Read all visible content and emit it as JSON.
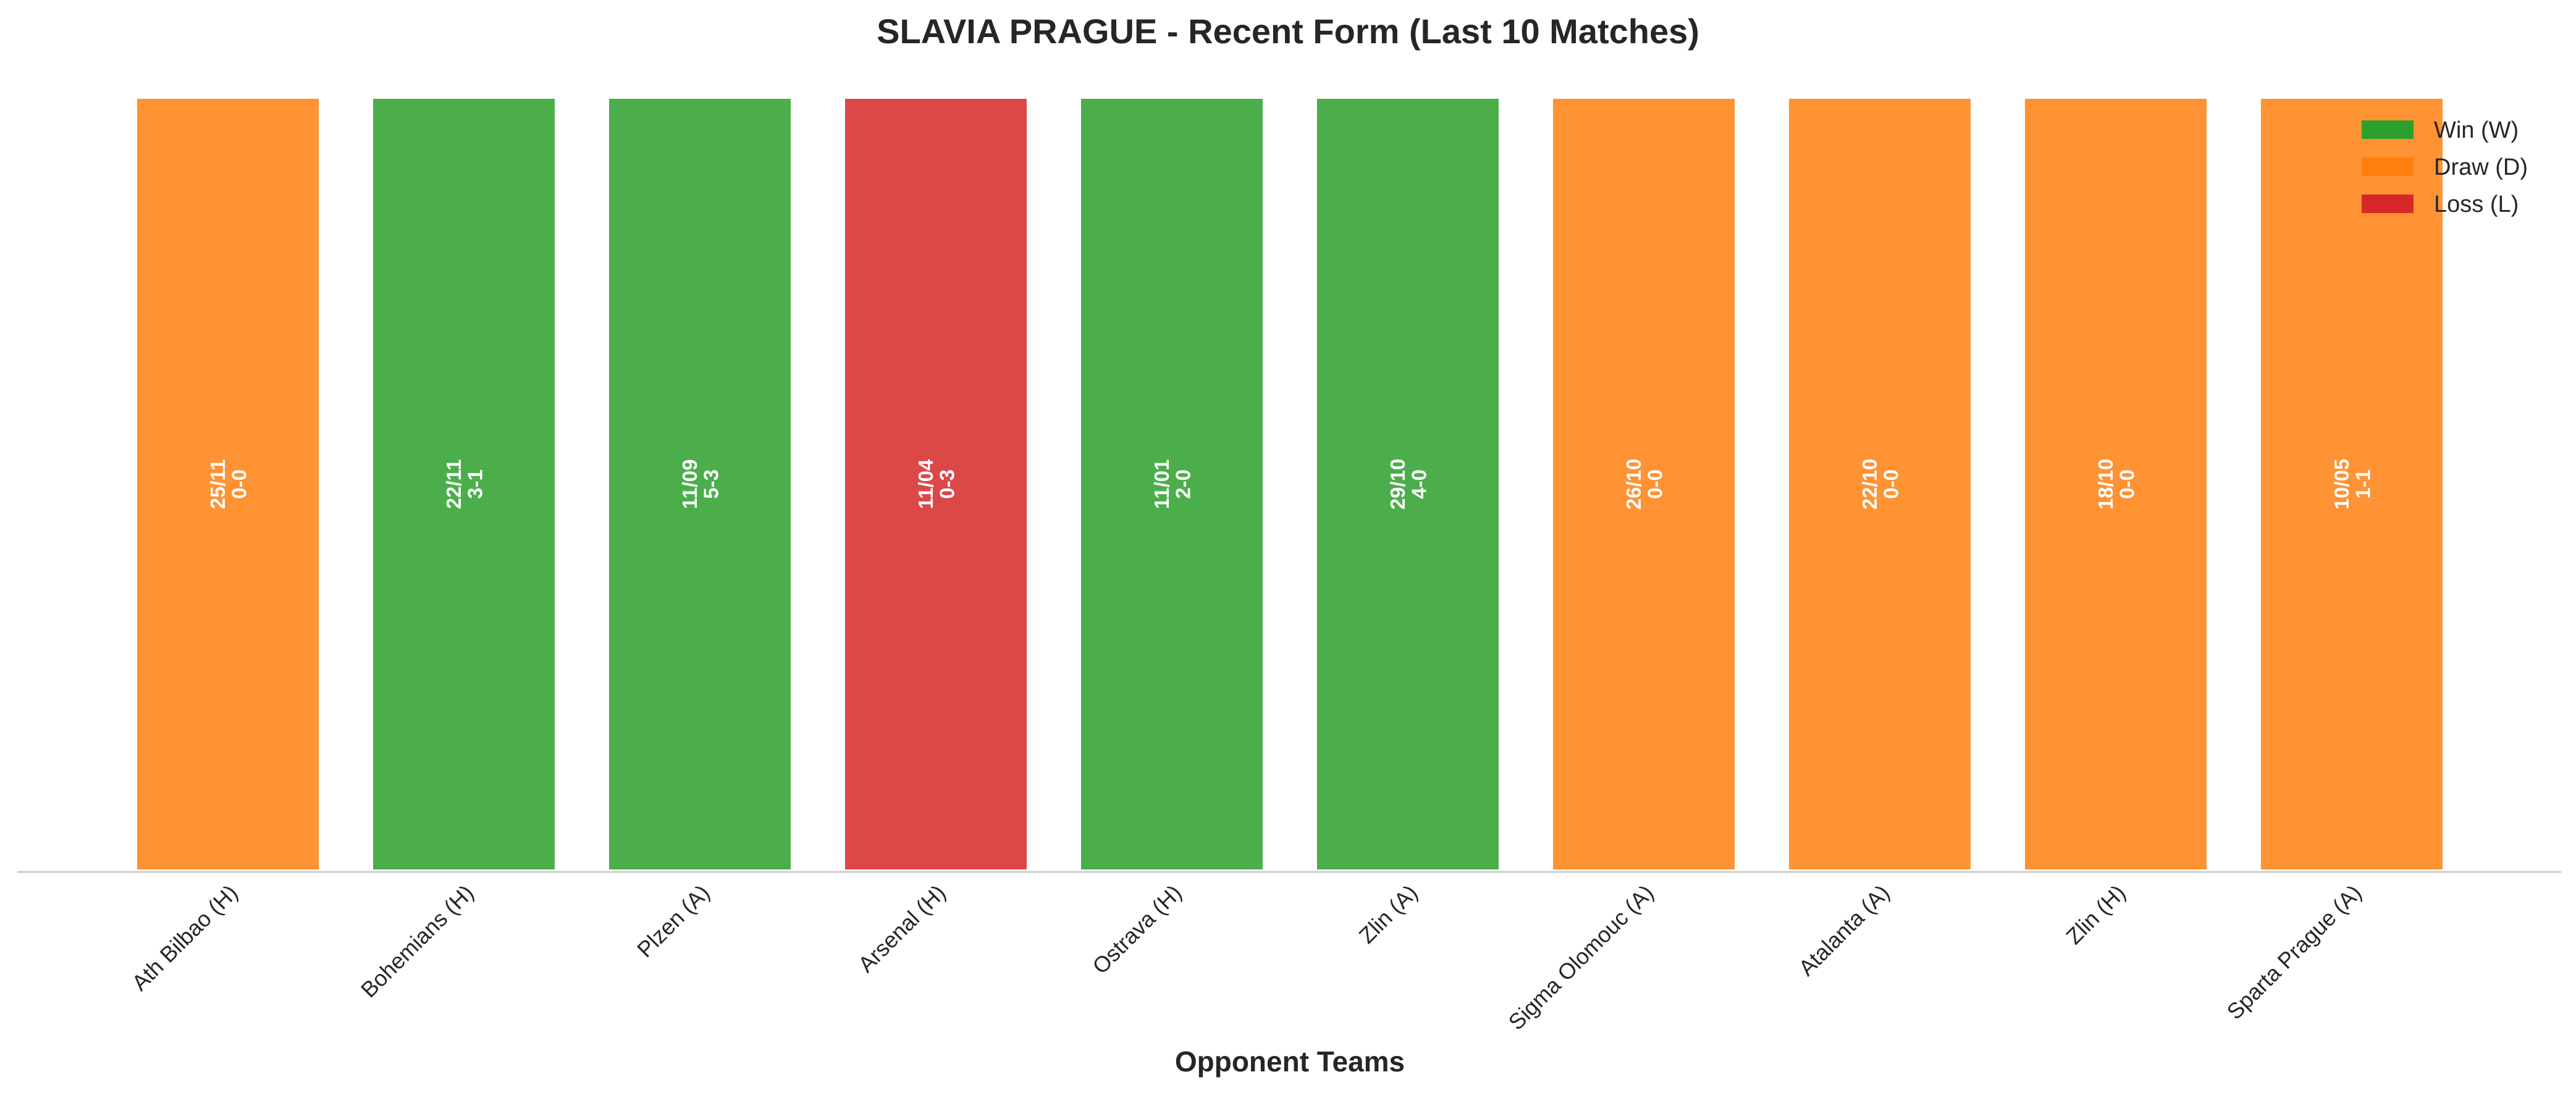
{
  "chart_data": {
    "type": "bar",
    "title": "SLAVIA PRAGUE - Recent Form (Last 10 Matches)",
    "xlabel": "Opponent Teams",
    "ylabel": "",
    "grid": false,
    "legend_position": "top-right",
    "categories": [
      "Ath Bilbao (H)",
      "Bohemians (H)",
      "Plzen (A)",
      "Arsenal (H)",
      "Ostrava (H)",
      "Zlin (A)",
      "Sigma Olomouc (A)",
      "Atalanta (A)",
      "Zlin (H)",
      "Sparta Prague (A)"
    ],
    "values": [
      1,
      1,
      1,
      1,
      1,
      1,
      1,
      1,
      1,
      1
    ],
    "ylim": [
      0,
      1.02
    ],
    "results": [
      "D",
      "W",
      "W",
      "L",
      "W",
      "W",
      "D",
      "D",
      "D",
      "D"
    ],
    "dates": [
      "25/11",
      "22/11",
      "11/09",
      "11/04",
      "11/01",
      "29/10",
      "26/10",
      "22/10",
      "18/10",
      "10/05"
    ],
    "scores": [
      "0-0",
      "3-1",
      "5-3",
      "0-3",
      "2-0",
      "4-0",
      "0-0",
      "0-0",
      "0-0",
      "1-1"
    ],
    "legend": [
      {
        "key": "W",
        "label": "Win (W)",
        "color": "#2ca02c"
      },
      {
        "key": "D",
        "label": "Draw (D)",
        "color": "#ff7f0e"
      },
      {
        "key": "L",
        "label": "Loss (L)",
        "color": "#d62728"
      }
    ]
  }
}
